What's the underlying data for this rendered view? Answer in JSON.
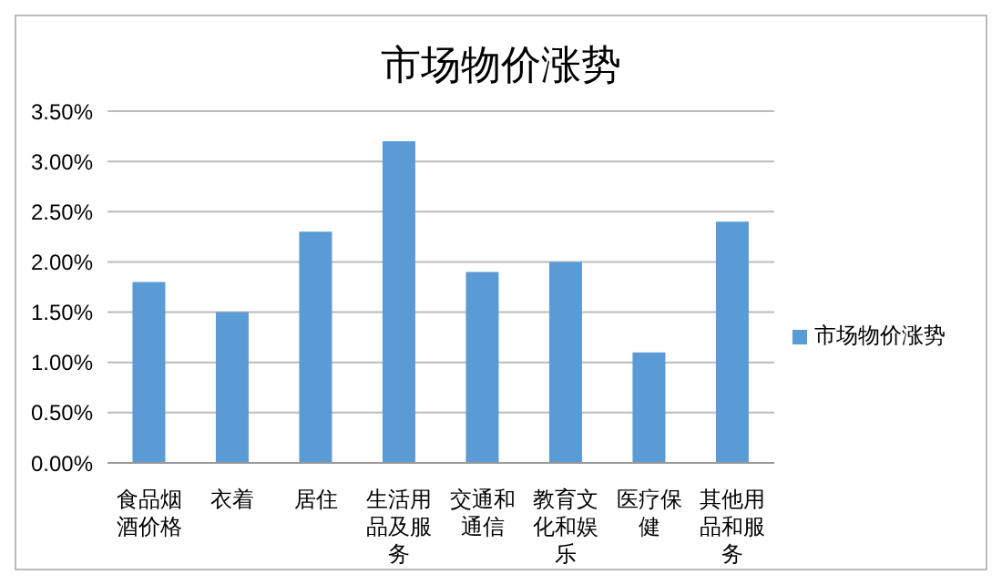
{
  "chart_data": {
    "type": "bar",
    "title": "市场物价涨势",
    "categories": [
      "食品烟酒价格",
      "衣着",
      "居住",
      "生活用品及服务",
      "交通和通信",
      "教育文化和娱乐",
      "医疗保健",
      "其他用品和服务"
    ],
    "series": [
      {
        "name": "市场物价涨势",
        "color": "#5b9bd5",
        "values": [
          1.8,
          1.5,
          2.3,
          3.2,
          1.9,
          2.0,
          1.1,
          2.4
        ]
      }
    ],
    "ylim": [
      0,
      3.5
    ],
    "yticks": [
      {
        "value": 0,
        "label": "0.00%"
      },
      {
        "value": 0.5,
        "label": "0.50%"
      },
      {
        "value": 1,
        "label": "1.00%"
      },
      {
        "value": 1.5,
        "label": "1.50%"
      },
      {
        "value": 2,
        "label": "2.00%"
      },
      {
        "value": 2.5,
        "label": "2.50%"
      },
      {
        "value": 3,
        "label": "3.00%"
      },
      {
        "value": 3.5,
        "label": "3.50%"
      }
    ],
    "grid": "y",
    "legend": "right"
  }
}
